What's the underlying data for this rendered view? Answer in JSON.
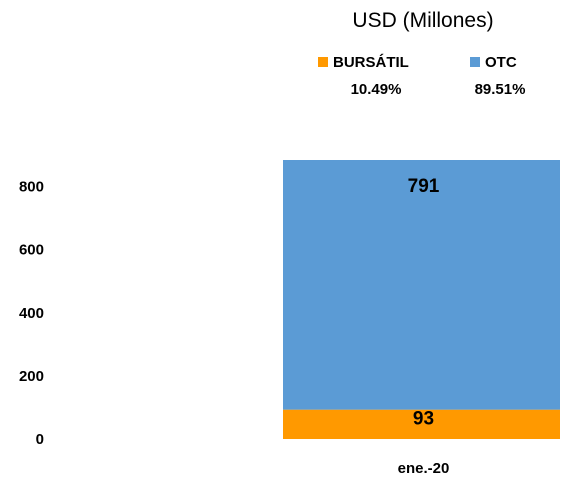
{
  "chart_data": {
    "type": "bar",
    "stacked": true,
    "title": "USD (Millones)",
    "categories": [
      "ene.-20"
    ],
    "series": [
      {
        "name": "BURSÁTIL",
        "values": [
          93
        ],
        "share_label": "10.49%",
        "color": "#FF9900"
      },
      {
        "name": "OTC",
        "values": [
          791
        ],
        "share_label": "89.51%",
        "color": "#5B9BD5"
      }
    ],
    "y_ticks": [
      0,
      200,
      400,
      600,
      800
    ],
    "ylim": [
      0,
      884
    ],
    "grid": false,
    "legend_position": "top"
  }
}
